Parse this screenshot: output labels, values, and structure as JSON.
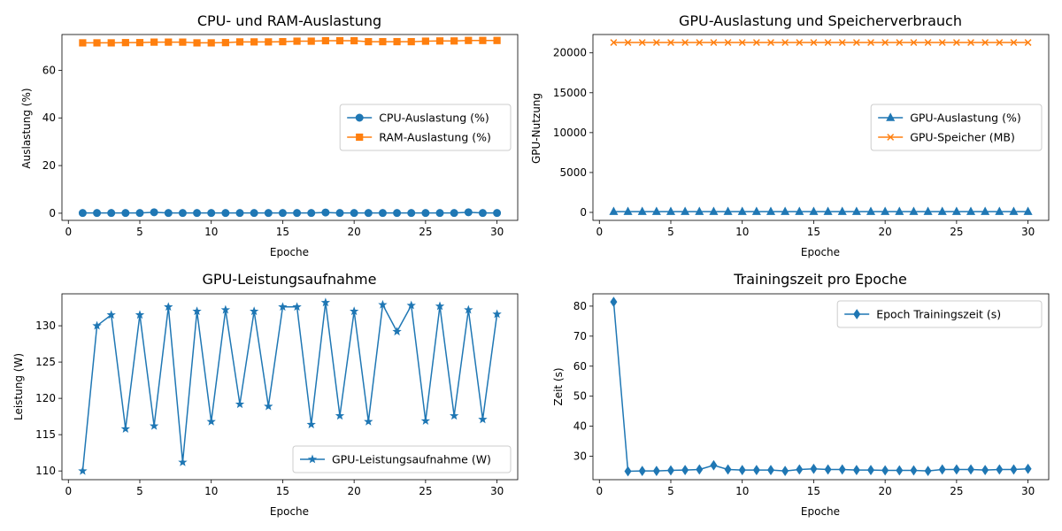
{
  "colors": {
    "blue": "#1f77b4",
    "orange": "#ff7f0e"
  },
  "chart_data": [
    {
      "type": "line",
      "title": "CPU- und RAM-Auslastung",
      "xlabel": "Epoche",
      "ylabel": "Auslastung (%)",
      "xlim": [
        -0.45,
        31.45
      ],
      "ylim": [
        -3,
        75
      ],
      "xticks": [
        0,
        5,
        10,
        15,
        20,
        25,
        30
      ],
      "yticks": [
        0,
        20,
        40,
        60
      ],
      "legend_position": "center-right",
      "x": [
        1,
        2,
        3,
        4,
        5,
        6,
        7,
        8,
        9,
        10,
        11,
        12,
        13,
        14,
        15,
        16,
        17,
        18,
        19,
        20,
        21,
        22,
        23,
        24,
        25,
        26,
        27,
        28,
        29,
        30
      ],
      "series": [
        {
          "name": "CPU-Auslastung (%)",
          "marker": "circle",
          "color": "#1f77b4",
          "values": [
            0.1,
            0.1,
            0.1,
            0.1,
            0.1,
            0.4,
            0.1,
            0.1,
            0.1,
            0.1,
            0.1,
            0.1,
            0.1,
            0.1,
            0.1,
            0.1,
            0.1,
            0.3,
            0.1,
            0.1,
            0.1,
            0.1,
            0.1,
            0.1,
            0.1,
            0.1,
            0.1,
            0.4,
            0.1,
            0.1
          ]
        },
        {
          "name": "RAM-Auslastung (%)",
          "marker": "square",
          "color": "#ff7f0e",
          "values": [
            71.5,
            71.5,
            71.5,
            71.6,
            71.6,
            71.8,
            71.8,
            71.8,
            71.5,
            71.5,
            71.6,
            71.9,
            71.9,
            71.9,
            72.0,
            72.2,
            72.2,
            72.4,
            72.4,
            72.4,
            72.0,
            72.0,
            72.0,
            72.0,
            72.2,
            72.3,
            72.3,
            72.5,
            72.5,
            72.5
          ]
        }
      ]
    },
    {
      "type": "line",
      "title": "GPU-Auslastung und Speicherverbrauch",
      "xlabel": "Epoche",
      "ylabel": "GPU-Nutzung",
      "xlim": [
        -0.45,
        31.45
      ],
      "ylim": [
        -1000,
        22300
      ],
      "xticks": [
        0,
        5,
        10,
        15,
        20,
        25,
        30
      ],
      "yticks": [
        0,
        5000,
        10000,
        15000,
        20000
      ],
      "legend_position": "center-right",
      "x": [
        1,
        2,
        3,
        4,
        5,
        6,
        7,
        8,
        9,
        10,
        11,
        12,
        13,
        14,
        15,
        16,
        17,
        18,
        19,
        20,
        21,
        22,
        23,
        24,
        25,
        26,
        27,
        28,
        29,
        30
      ],
      "series": [
        {
          "name": "GPU-Auslastung (%)",
          "marker": "triangle",
          "color": "#1f77b4",
          "values": [
            98,
            98,
            98,
            98,
            98,
            98,
            98,
            98,
            98,
            98,
            98,
            98,
            98,
            98,
            98,
            98,
            98,
            98,
            98,
            98,
            98,
            98,
            98,
            98,
            98,
            98,
            98,
            98,
            98,
            98
          ]
        },
        {
          "name": "GPU-Speicher (MB)",
          "marker": "x",
          "color": "#ff7f0e",
          "values": [
            21300,
            21300,
            21300,
            21300,
            21300,
            21300,
            21300,
            21300,
            21300,
            21300,
            21300,
            21300,
            21300,
            21300,
            21300,
            21300,
            21300,
            21300,
            21300,
            21300,
            21300,
            21300,
            21300,
            21300,
            21300,
            21300,
            21300,
            21300,
            21300,
            21300
          ]
        }
      ]
    },
    {
      "type": "line",
      "title": "GPU-Leistungsaufnahme",
      "xlabel": "Epoche",
      "ylabel": "Leistung (W)",
      "xlim": [
        -0.45,
        31.45
      ],
      "ylim": [
        108.8,
        134.4
      ],
      "xticks": [
        0,
        5,
        10,
        15,
        20,
        25,
        30
      ],
      "yticks": [
        110,
        115,
        120,
        125,
        130
      ],
      "legend_position": "lower-right",
      "x": [
        1,
        2,
        3,
        4,
        5,
        6,
        7,
        8,
        9,
        10,
        11,
        12,
        13,
        14,
        15,
        16,
        17,
        18,
        19,
        20,
        21,
        22,
        23,
        24,
        25,
        26,
        27,
        28,
        29,
        30
      ],
      "series": [
        {
          "name": "GPU-Leistungsaufnahme (W)",
          "marker": "star",
          "color": "#1f77b4",
          "values": [
            110.0,
            130.0,
            131.5,
            115.8,
            131.5,
            116.2,
            132.6,
            111.2,
            132.0,
            116.8,
            132.2,
            119.2,
            132.0,
            118.9,
            132.6,
            132.6,
            116.4,
            133.2,
            117.6,
            132.0,
            116.8,
            132.9,
            129.2,
            132.8,
            116.9,
            132.7,
            117.6,
            132.2,
            117.1,
            131.6
          ]
        }
      ]
    },
    {
      "type": "line",
      "title": "Trainingszeit pro Epoche",
      "xlabel": "Epoche",
      "ylabel": "Zeit (s)",
      "xlim": [
        -0.45,
        31.45
      ],
      "ylim": [
        22.2,
        84.1
      ],
      "xticks": [
        0,
        5,
        10,
        15,
        20,
        25,
        30
      ],
      "yticks": [
        30,
        40,
        50,
        60,
        70,
        80
      ],
      "legend_position": "upper-right",
      "x": [
        1,
        2,
        3,
        4,
        5,
        6,
        7,
        8,
        9,
        10,
        11,
        12,
        13,
        14,
        15,
        16,
        17,
        18,
        19,
        20,
        21,
        22,
        23,
        24,
        25,
        26,
        27,
        28,
        29,
        30
      ],
      "series": [
        {
          "name": "Epoch Trainingszeit (s)",
          "marker": "diamond",
          "color": "#1f77b4",
          "values": [
            81.4,
            25.0,
            25.1,
            25.1,
            25.3,
            25.4,
            25.6,
            27.0,
            25.6,
            25.4,
            25.4,
            25.4,
            25.1,
            25.6,
            25.8,
            25.6,
            25.6,
            25.4,
            25.4,
            25.3,
            25.3,
            25.3,
            25.1,
            25.6,
            25.6,
            25.6,
            25.4,
            25.6,
            25.6,
            25.8
          ]
        }
      ]
    }
  ]
}
